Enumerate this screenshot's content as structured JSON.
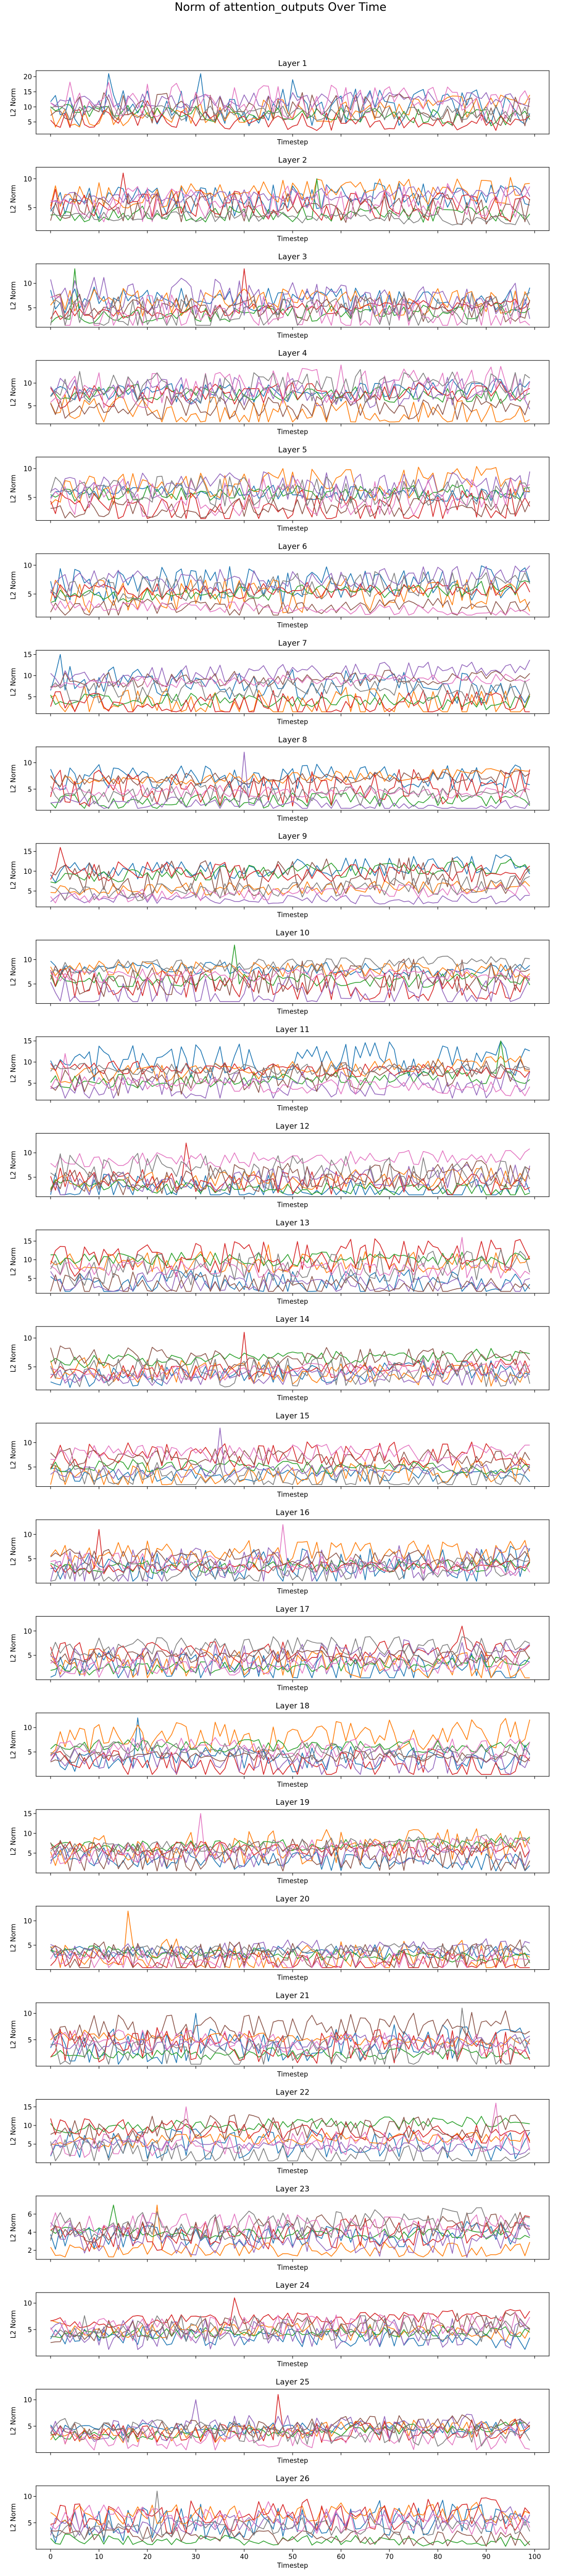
{
  "figure": {
    "suptitle": "Norm of attention_outputs Over Time",
    "series_colors": [
      "#1f77b4",
      "#ff7f0e",
      "#2ca02c",
      "#d62728",
      "#9467bd",
      "#8c564b",
      "#e377c2",
      "#7f7f7f"
    ]
  },
  "chart_data": [
    {
      "type": "line",
      "title": "Layer 1",
      "xlabel": "Timestep",
      "ylabel": "L2 Norm",
      "xlim": [
        -3,
        103
      ],
      "ylim": [
        1,
        22
      ],
      "yticks": [
        5,
        10,
        15,
        20
      ],
      "xticks": [],
      "grid": false,
      "spikes": [
        [
          0,
          12,
          21
        ],
        [
          0,
          31,
          21
        ],
        [
          0,
          50,
          19
        ],
        [
          5,
          5,
          11
        ],
        [
          3,
          20,
          12
        ],
        [
          2,
          60,
          10
        ]
      ]
    },
    {
      "type": "line",
      "title": "Layer 2",
      "xlabel": "Timestep",
      "ylabel": "L2 Norm",
      "xlim": [
        -3,
        103
      ],
      "ylim": [
        1,
        12
      ],
      "yticks": [
        5,
        10
      ],
      "xticks": [],
      "grid": false,
      "spikes": [
        [
          3,
          15,
          11
        ],
        [
          2,
          55,
          10
        ]
      ]
    },
    {
      "type": "line",
      "title": "Layer 3",
      "xlabel": "Timestep",
      "ylabel": "L2 Norm",
      "xlim": [
        -3,
        103
      ],
      "ylim": [
        1,
        14
      ],
      "yticks": [
        5,
        10
      ],
      "xticks": [],
      "grid": false,
      "spikes": [
        [
          2,
          5,
          13
        ],
        [
          3,
          40,
          13
        ]
      ]
    },
    {
      "type": "line",
      "title": "Layer 4",
      "xlabel": "Timestep",
      "ylabel": "L2 Norm",
      "xlim": [
        -3,
        103
      ],
      "ylim": [
        1,
        15
      ],
      "yticks": [
        5,
        10
      ],
      "xticks": [],
      "grid": false,
      "spikes": [
        [
          6,
          60,
          14
        ],
        [
          7,
          64,
          13
        ],
        [
          4,
          50,
          11
        ]
      ]
    },
    {
      "type": "line",
      "title": "Layer 5",
      "xlabel": "Timestep",
      "ylabel": "L2 Norm",
      "xlim": [
        -3,
        103
      ],
      "ylim": [
        1,
        12
      ],
      "yticks": [
        5,
        10
      ],
      "xticks": [],
      "grid": false,
      "spikes": []
    },
    {
      "type": "line",
      "title": "Layer 6",
      "xlabel": "Timestep",
      "ylabel": "L2 Norm",
      "xlim": [
        -3,
        103
      ],
      "ylim": [
        1,
        12
      ],
      "yticks": [
        5,
        10
      ],
      "xticks": [],
      "grid": false,
      "spikes": []
    },
    {
      "type": "line",
      "title": "Layer 7",
      "xlabel": "Timestep",
      "ylabel": "L2 Norm",
      "xlim": [
        -3,
        103
      ],
      "ylim": [
        1,
        16
      ],
      "yticks": [
        5,
        10,
        15
      ],
      "xticks": [],
      "grid": false,
      "spikes": [
        [
          0,
          2,
          15
        ]
      ]
    },
    {
      "type": "line",
      "title": "Layer 8",
      "xlabel": "Timestep",
      "ylabel": "L2 Norm",
      "xlim": [
        -3,
        103
      ],
      "ylim": [
        1,
        13
      ],
      "yticks": [
        5,
        10
      ],
      "xticks": [],
      "grid": false,
      "spikes": [
        [
          4,
          40,
          12
        ]
      ]
    },
    {
      "type": "line",
      "title": "Layer 9",
      "xlabel": "Timestep",
      "ylabel": "L2 Norm",
      "xlim": [
        -3,
        103
      ],
      "ylim": [
        1,
        17
      ],
      "yticks": [
        5,
        10,
        15
      ],
      "xticks": [],
      "grid": false,
      "spikes": [
        [
          3,
          2,
          16
        ]
      ]
    },
    {
      "type": "line",
      "title": "Layer 10",
      "xlabel": "Timestep",
      "ylabel": "L2 Norm",
      "xlim": [
        -3,
        103
      ],
      "ylim": [
        1,
        14
      ],
      "yticks": [
        5,
        10
      ],
      "xticks": [],
      "grid": false,
      "spikes": [
        [
          2,
          38,
          13
        ]
      ]
    },
    {
      "type": "line",
      "title": "Layer 11",
      "xlabel": "Timestep",
      "ylabel": "L2 Norm",
      "xlim": [
        -3,
        103
      ],
      "ylim": [
        1,
        16
      ],
      "yticks": [
        5,
        10,
        15
      ],
      "xticks": [],
      "grid": false,
      "spikes": [
        [
          6,
          3,
          12
        ],
        [
          2,
          93,
          15
        ]
      ]
    },
    {
      "type": "line",
      "title": "Layer 12",
      "xlabel": "Timestep",
      "ylabel": "L2 Norm",
      "xlim": [
        -3,
        103
      ],
      "ylim": [
        1,
        14
      ],
      "yticks": [
        5,
        10
      ],
      "xticks": [],
      "grid": false,
      "spikes": [
        [
          3,
          28,
          12
        ]
      ]
    },
    {
      "type": "line",
      "title": "Layer 13",
      "xlabel": "Timestep",
      "ylabel": "L2 Norm",
      "xlim": [
        -3,
        103
      ],
      "ylim": [
        1,
        18
      ],
      "yticks": [
        5,
        10,
        15
      ],
      "xticks": [],
      "grid": false,
      "spikes": [
        [
          6,
          85,
          16
        ],
        [
          1,
          45,
          14
        ]
      ]
    },
    {
      "type": "line",
      "title": "Layer 14",
      "xlabel": "Timestep",
      "ylabel": "L2 Norm",
      "xlim": [
        -3,
        103
      ],
      "ylim": [
        1,
        12
      ],
      "yticks": [
        5,
        10
      ],
      "xticks": [],
      "grid": false,
      "spikes": [
        [
          3,
          40,
          11
        ]
      ]
    },
    {
      "type": "line",
      "title": "Layer 15",
      "xlabel": "Timestep",
      "ylabel": "L2 Norm",
      "xlim": [
        -3,
        103
      ],
      "ylim": [
        1,
        14
      ],
      "yticks": [
        5,
        10
      ],
      "xticks": [],
      "grid": false,
      "spikes": [
        [
          4,
          35,
          13
        ]
      ]
    },
    {
      "type": "line",
      "title": "Layer 16",
      "xlabel": "Timestep",
      "ylabel": "L2 Norm",
      "xlim": [
        -3,
        103
      ],
      "ylim": [
        0,
        13
      ],
      "yticks": [
        5,
        10
      ],
      "xticks": [],
      "grid": false,
      "spikes": [
        [
          6,
          48,
          12
        ],
        [
          3,
          10,
          11
        ]
      ]
    },
    {
      "type": "line",
      "title": "Layer 17",
      "xlabel": "Timestep",
      "ylabel": "L2 Norm",
      "xlim": [
        -3,
        103
      ],
      "ylim": [
        0,
        13
      ],
      "yticks": [
        5,
        10
      ],
      "xticks": [],
      "grid": false,
      "spikes": [
        [
          3,
          85,
          11
        ]
      ]
    },
    {
      "type": "line",
      "title": "Layer 18",
      "xlabel": "Timestep",
      "ylabel": "L2 Norm",
      "xlim": [
        -3,
        103
      ],
      "ylim": [
        0,
        13
      ],
      "yticks": [
        5,
        10
      ],
      "xticks": [],
      "grid": false,
      "spikes": [
        [
          0,
          18,
          12
        ]
      ]
    },
    {
      "type": "line",
      "title": "Layer 19",
      "xlabel": "Timestep",
      "ylabel": "L2 Norm",
      "xlim": [
        -3,
        103
      ],
      "ylim": [
        0,
        16
      ],
      "yticks": [
        5,
        10,
        15
      ],
      "xticks": [],
      "grid": false,
      "spikes": [
        [
          6,
          31,
          15
        ]
      ]
    },
    {
      "type": "line",
      "title": "Layer 20",
      "xlabel": "Timestep",
      "ylabel": "L2 Norm",
      "xlim": [
        -3,
        103
      ],
      "ylim": [
        0,
        13
      ],
      "yticks": [
        5,
        10
      ],
      "xticks": [],
      "grid": false,
      "spikes": [
        [
          1,
          16,
          12
        ]
      ]
    },
    {
      "type": "line",
      "title": "Layer 21",
      "xlabel": "Timestep",
      "ylabel": "L2 Norm",
      "xlim": [
        -3,
        103
      ],
      "ylim": [
        0,
        12
      ],
      "yticks": [
        5,
        10
      ],
      "xticks": [],
      "grid": false,
      "spikes": [
        [
          0,
          30,
          10
        ],
        [
          7,
          85,
          11
        ]
      ]
    },
    {
      "type": "line",
      "title": "Layer 22",
      "xlabel": "Timestep",
      "ylabel": "L2 Norm",
      "xlim": [
        -3,
        103
      ],
      "ylim": [
        0,
        17
      ],
      "yticks": [
        5,
        10,
        15
      ],
      "xticks": [],
      "grid": false,
      "spikes": [
        [
          6,
          92,
          16
        ],
        [
          6,
          28,
          15
        ]
      ]
    },
    {
      "type": "line",
      "title": "Layer 23",
      "xlabel": "Timestep",
      "ylabel": "L2 Norm",
      "xlim": [
        -3,
        103
      ],
      "ylim": [
        1,
        8
      ],
      "yticks": [
        2,
        4,
        6
      ],
      "xticks": [],
      "grid": false,
      "spikes": [
        [
          2,
          13,
          7
        ],
        [
          1,
          22,
          7
        ]
      ]
    },
    {
      "type": "line",
      "title": "Layer 24",
      "xlabel": "Timestep",
      "ylabel": "L2 Norm",
      "xlim": [
        -3,
        103
      ],
      "ylim": [
        0,
        12
      ],
      "yticks": [
        5,
        10
      ],
      "xticks": [],
      "grid": false,
      "spikes": [
        [
          3,
          38,
          11
        ]
      ]
    },
    {
      "type": "line",
      "title": "Layer 25",
      "xlabel": "Timestep",
      "ylabel": "L2 Norm",
      "xlim": [
        -3,
        103
      ],
      "ylim": [
        0,
        12
      ],
      "yticks": [
        5,
        10
      ],
      "xticks": [],
      "grid": false,
      "spikes": [
        [
          3,
          47,
          11
        ],
        [
          4,
          30,
          10
        ]
      ]
    },
    {
      "type": "line",
      "title": "Layer 26",
      "xlabel": "Timestep",
      "ylabel": "L2 Norm",
      "xlim": [
        -3,
        103
      ],
      "ylim": [
        0,
        12
      ],
      "yticks": [
        5,
        10
      ],
      "xticks": [
        0,
        10,
        20,
        30,
        40,
        50,
        60,
        70,
        80,
        90,
        100
      ],
      "grid": false,
      "spikes": [
        [
          7,
          22,
          11
        ],
        [
          6,
          45,
          9
        ]
      ]
    }
  ]
}
